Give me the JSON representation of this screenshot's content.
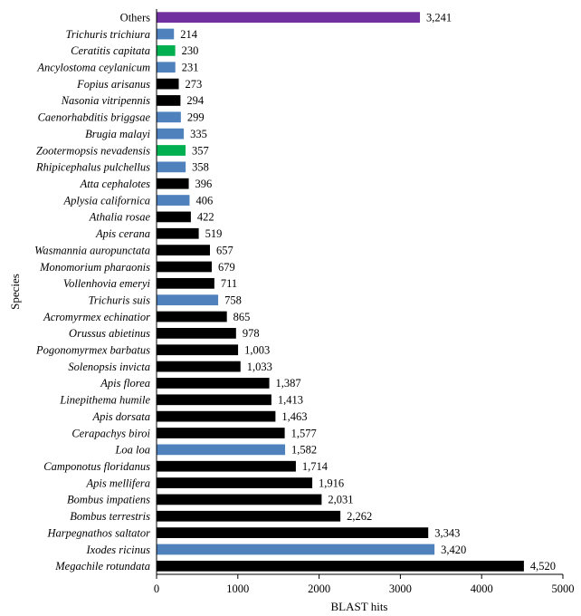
{
  "chart_data": {
    "type": "bar",
    "orientation": "horizontal",
    "title": "",
    "xlabel": "BLAST hits",
    "ylabel": "Species",
    "xlim": [
      0,
      5000
    ],
    "xticks": [
      0,
      1000,
      2000,
      3000,
      4000,
      5000
    ],
    "xtick_labels": [
      "0",
      "1000",
      "2000",
      "3000",
      "4000",
      "5000"
    ],
    "grid": false,
    "legend": "none",
    "colors": {
      "black": "#000000",
      "blue": "#4f81bd",
      "green": "#00b050",
      "purple": "#7030a0"
    },
    "categories": [
      "Others",
      "Trichuris trichiura",
      "Ceratitis capitata",
      "Ancylostoma ceylanicum",
      "Fopius arisanus",
      "Nasonia vitripennis",
      "Caenorhabditis briggsae",
      "Brugia malayi",
      "Zootermopsis nevadensis",
      "Rhipicephalus pulchellus",
      "Atta cephalotes",
      "Aplysia californica",
      "Athalia rosae",
      "Apis cerana",
      "Wasmannia auropunctata",
      "Monomorium pharaonis",
      "Vollenhovia emeryi",
      "Trichuris suis",
      "Acromyrmex echinatior",
      "Orussus abietinus",
      "Pogonomyrmex barbatus",
      "Solenopsis invicta",
      "Apis florea",
      "Linepithema humile",
      "Apis dorsata",
      "Cerapachys biroi",
      "Loa loa",
      "Camponotus floridanus",
      "Apis mellifera",
      "Bombus impatiens",
      "Bombus terrestris",
      "Harpegnathos saltator",
      "Ixodes ricinus",
      "Megachile rotundata"
    ],
    "values": [
      3241,
      214,
      230,
      231,
      273,
      294,
      299,
      335,
      357,
      358,
      396,
      406,
      422,
      519,
      657,
      679,
      711,
      758,
      865,
      978,
      1003,
      1033,
      1387,
      1413,
      1463,
      1577,
      1582,
      1714,
      1916,
      2031,
      2262,
      3343,
      3420,
      4520
    ],
    "value_labels": [
      "3,241",
      "214",
      "230",
      "231",
      "273",
      "294",
      "299",
      "335",
      "357",
      "358",
      "396",
      "406",
      "422",
      "519",
      "657",
      "679",
      "711",
      "758",
      "865",
      "978",
      "1,003",
      "1,033",
      "1,387",
      "1,413",
      "1,463",
      "1,577",
      "1,582",
      "1,714",
      "1,916",
      "2,031",
      "2,262",
      "3,343",
      "3,420",
      "4,520"
    ],
    "bar_colors": [
      "purple",
      "blue",
      "green",
      "blue",
      "black",
      "black",
      "blue",
      "blue",
      "green",
      "blue",
      "black",
      "blue",
      "black",
      "black",
      "black",
      "black",
      "black",
      "blue",
      "black",
      "black",
      "black",
      "black",
      "black",
      "black",
      "black",
      "black",
      "blue",
      "black",
      "black",
      "black",
      "black",
      "black",
      "blue",
      "black"
    ]
  }
}
